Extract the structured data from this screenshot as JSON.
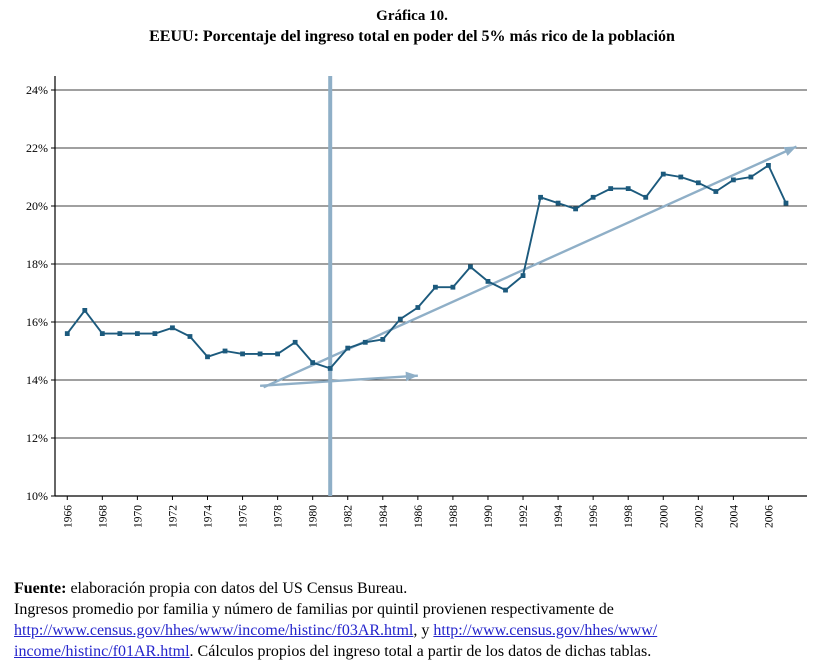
{
  "title": {
    "line1": "Gráfica 10.",
    "line2": "EEUU: Porcentaje del ingreso total en poder del 5% más rico de la población"
  },
  "chart_data": {
    "type": "line",
    "title": "EEUU: Porcentaje del ingreso total en poder del 5% más rico de la población",
    "years": [
      1966,
      1967,
      1968,
      1969,
      1970,
      1971,
      1972,
      1973,
      1974,
      1975,
      1976,
      1977,
      1978,
      1979,
      1980,
      1981,
      1982,
      1983,
      1984,
      1985,
      1986,
      1987,
      1988,
      1989,
      1990,
      1991,
      1992,
      1993,
      1994,
      1995,
      1996,
      1997,
      1998,
      1999,
      2000,
      2001,
      2002,
      2003,
      2004,
      2005,
      2006,
      2007
    ],
    "series": [
      {
        "name": "Porcentaje del ingreso total del 5% más rico",
        "values": [
          15.6,
          16.4,
          15.6,
          15.6,
          15.6,
          15.6,
          15.8,
          15.5,
          14.8,
          15.0,
          14.9,
          14.9,
          14.9,
          15.3,
          14.6,
          14.4,
          15.1,
          15.3,
          15.4,
          16.1,
          16.5,
          17.2,
          17.2,
          17.9,
          17.4,
          17.1,
          17.6,
          20.3,
          20.1,
          19.9,
          20.3,
          20.6,
          20.6,
          20.3,
          21.1,
          21.0,
          20.8,
          20.5,
          20.9,
          21.0,
          21.4,
          20.1
        ]
      }
    ],
    "ylim": [
      10,
      24
    ],
    "ytick_step": 2,
    "ytick_labels": [
      "10%",
      "12%",
      "14%",
      "16%",
      "18%",
      "20%",
      "22%",
      "24%"
    ],
    "xtick_labels": [
      "1966",
      "1968",
      "1970",
      "1972",
      "1974",
      "1976",
      "1978",
      "1980",
      "1982",
      "1984",
      "1986",
      "1988",
      "1990",
      "1992",
      "1994",
      "1996",
      "1998",
      "2000",
      "2002",
      "2004",
      "2006"
    ],
    "grid": "horizontal",
    "legend": "none",
    "annotations": {
      "vertical_line_year": 1981,
      "trend_arrows": [
        {
          "name": "trend-arrow-pre-1981",
          "x1": 1977.0,
          "y1": 13.8,
          "x2": 1986.0,
          "y2": 14.15
        },
        {
          "name": "trend-arrow-post-1981",
          "x1": 1977.2,
          "y1": 13.75,
          "x2": 2007.6,
          "y2": 22.05
        }
      ]
    },
    "colors": {
      "line": "#1c5a7d",
      "accent": "#8fafc7",
      "grid": "#000000"
    }
  },
  "footer": {
    "lines": [
      [
        {
          "t": "Fuente:",
          "b": true
        },
        {
          "t": " elaboración propia con datos del US Census Bureau."
        }
      ],
      [
        {
          "t": "Ingresos promedio por familia y número de familias por quintil provienen respectivamente de"
        }
      ],
      [
        {
          "t": "http://www.census.gov/hhes/www/income/histinc/f03AR.html",
          "link": true,
          "name": "census-link-f03ar"
        },
        {
          "t": ", y "
        },
        {
          "t": "http://www.census.gov/hhes/www/",
          "link": true,
          "name": "census-link-f01ar-part1"
        }
      ],
      [
        {
          "t": "income/histinc/f01AR.html",
          "link": true,
          "name": "census-link-f01ar-part2"
        },
        {
          "t": ". Cálculos propios del ingreso total a partir de los datos de dichas tablas."
        }
      ]
    ]
  }
}
